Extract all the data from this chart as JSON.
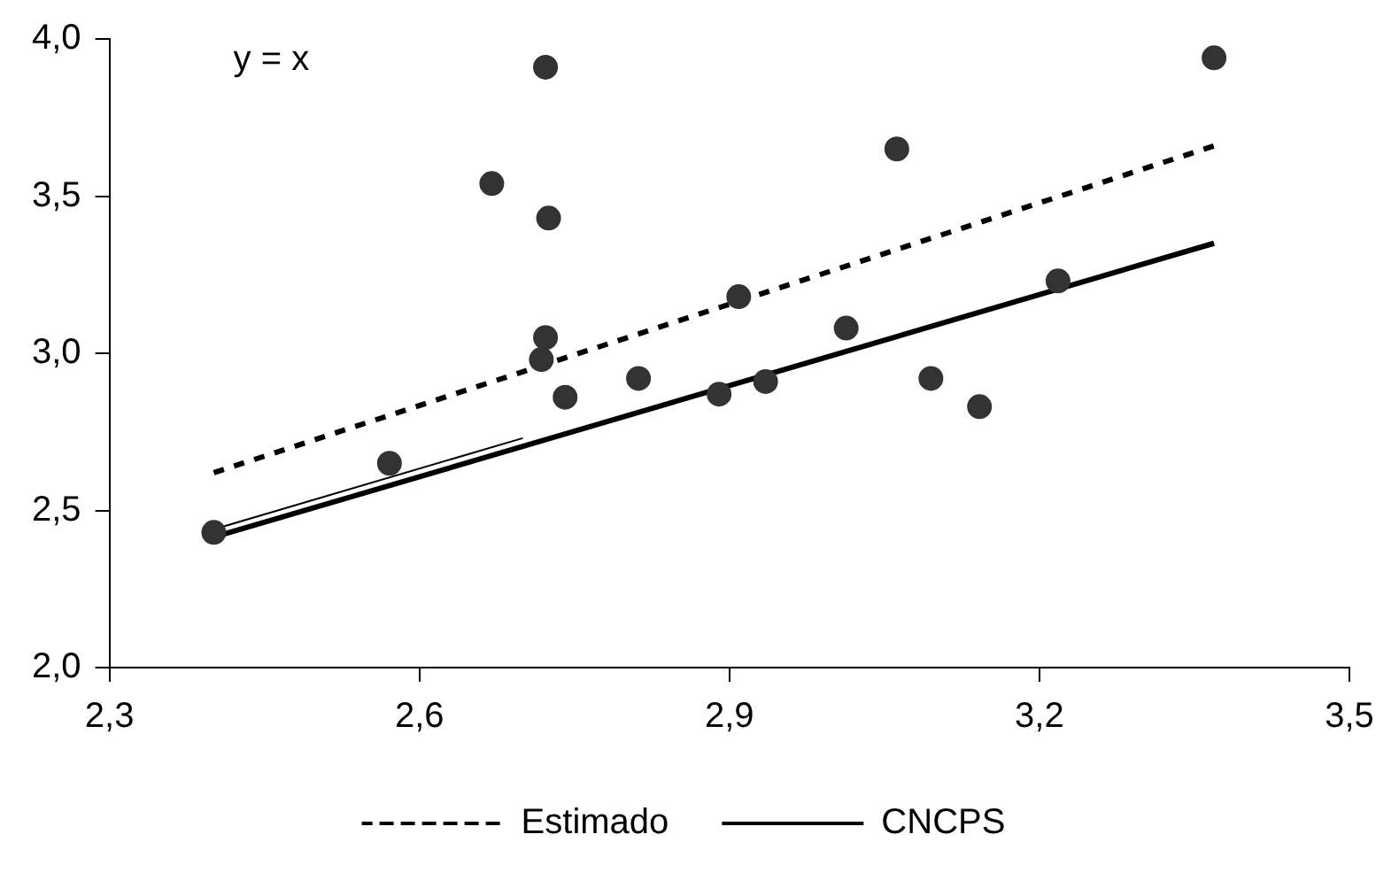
{
  "chart_data": {
    "type": "scatter",
    "annotations": [
      "y = x"
    ],
    "xlim": [
      2.3,
      3.5
    ],
    "ylim": [
      2.0,
      4.0
    ],
    "xticks": [
      {
        "value": 2.3,
        "label": "2,3"
      },
      {
        "value": 2.6,
        "label": "2,6"
      },
      {
        "value": 2.9,
        "label": "2,9"
      },
      {
        "value": 3.2,
        "label": "3,2"
      },
      {
        "value": 3.5,
        "label": "3,5"
      }
    ],
    "yticks": [
      {
        "value": 2.0,
        "label": "2,0"
      },
      {
        "value": 2.5,
        "label": "2,5"
      },
      {
        "value": 3.0,
        "label": "3,0"
      },
      {
        "value": 3.5,
        "label": "3,5"
      },
      {
        "value": 4.0,
        "label": "4,0"
      }
    ],
    "grid": false,
    "legend": "bottom",
    "series": [
      {
        "color": "#333333",
        "marker": "circle",
        "x": [
          2.401,
          2.571,
          2.67,
          2.718,
          2.722,
          2.722,
          2.725,
          2.741,
          2.812,
          2.89,
          2.909,
          2.935,
          3.013,
          3.062,
          3.095,
          3.142,
          3.218,
          3.369
        ],
        "values": [
          2.43,
          2.65,
          3.54,
          2.98,
          3.05,
          3.91,
          3.43,
          2.86,
          2.92,
          2.87,
          3.18,
          2.91,
          3.08,
          3.65,
          2.92,
          2.83,
          3.23,
          3.94
        ]
      },
      {
        "type": "line",
        "name": "Estimado",
        "color": "#000000",
        "line_style": "dashed",
        "marker": "none",
        "x": [
          2.401,
          3.369
        ],
        "values": [
          2.62,
          3.66
        ]
      },
      {
        "type": "line",
        "name": "CNCPS",
        "color": "#000000",
        "line_style": "solid",
        "marker": "none",
        "x": [
          2.401,
          3.369
        ],
        "values": [
          2.415,
          3.35
        ]
      },
      {
        "type": "line",
        "color": "#000000",
        "line_style": "solid",
        "marker": "none",
        "x": [
          2.401,
          2.7
        ],
        "values": [
          2.44,
          2.73
        ]
      }
    ]
  }
}
